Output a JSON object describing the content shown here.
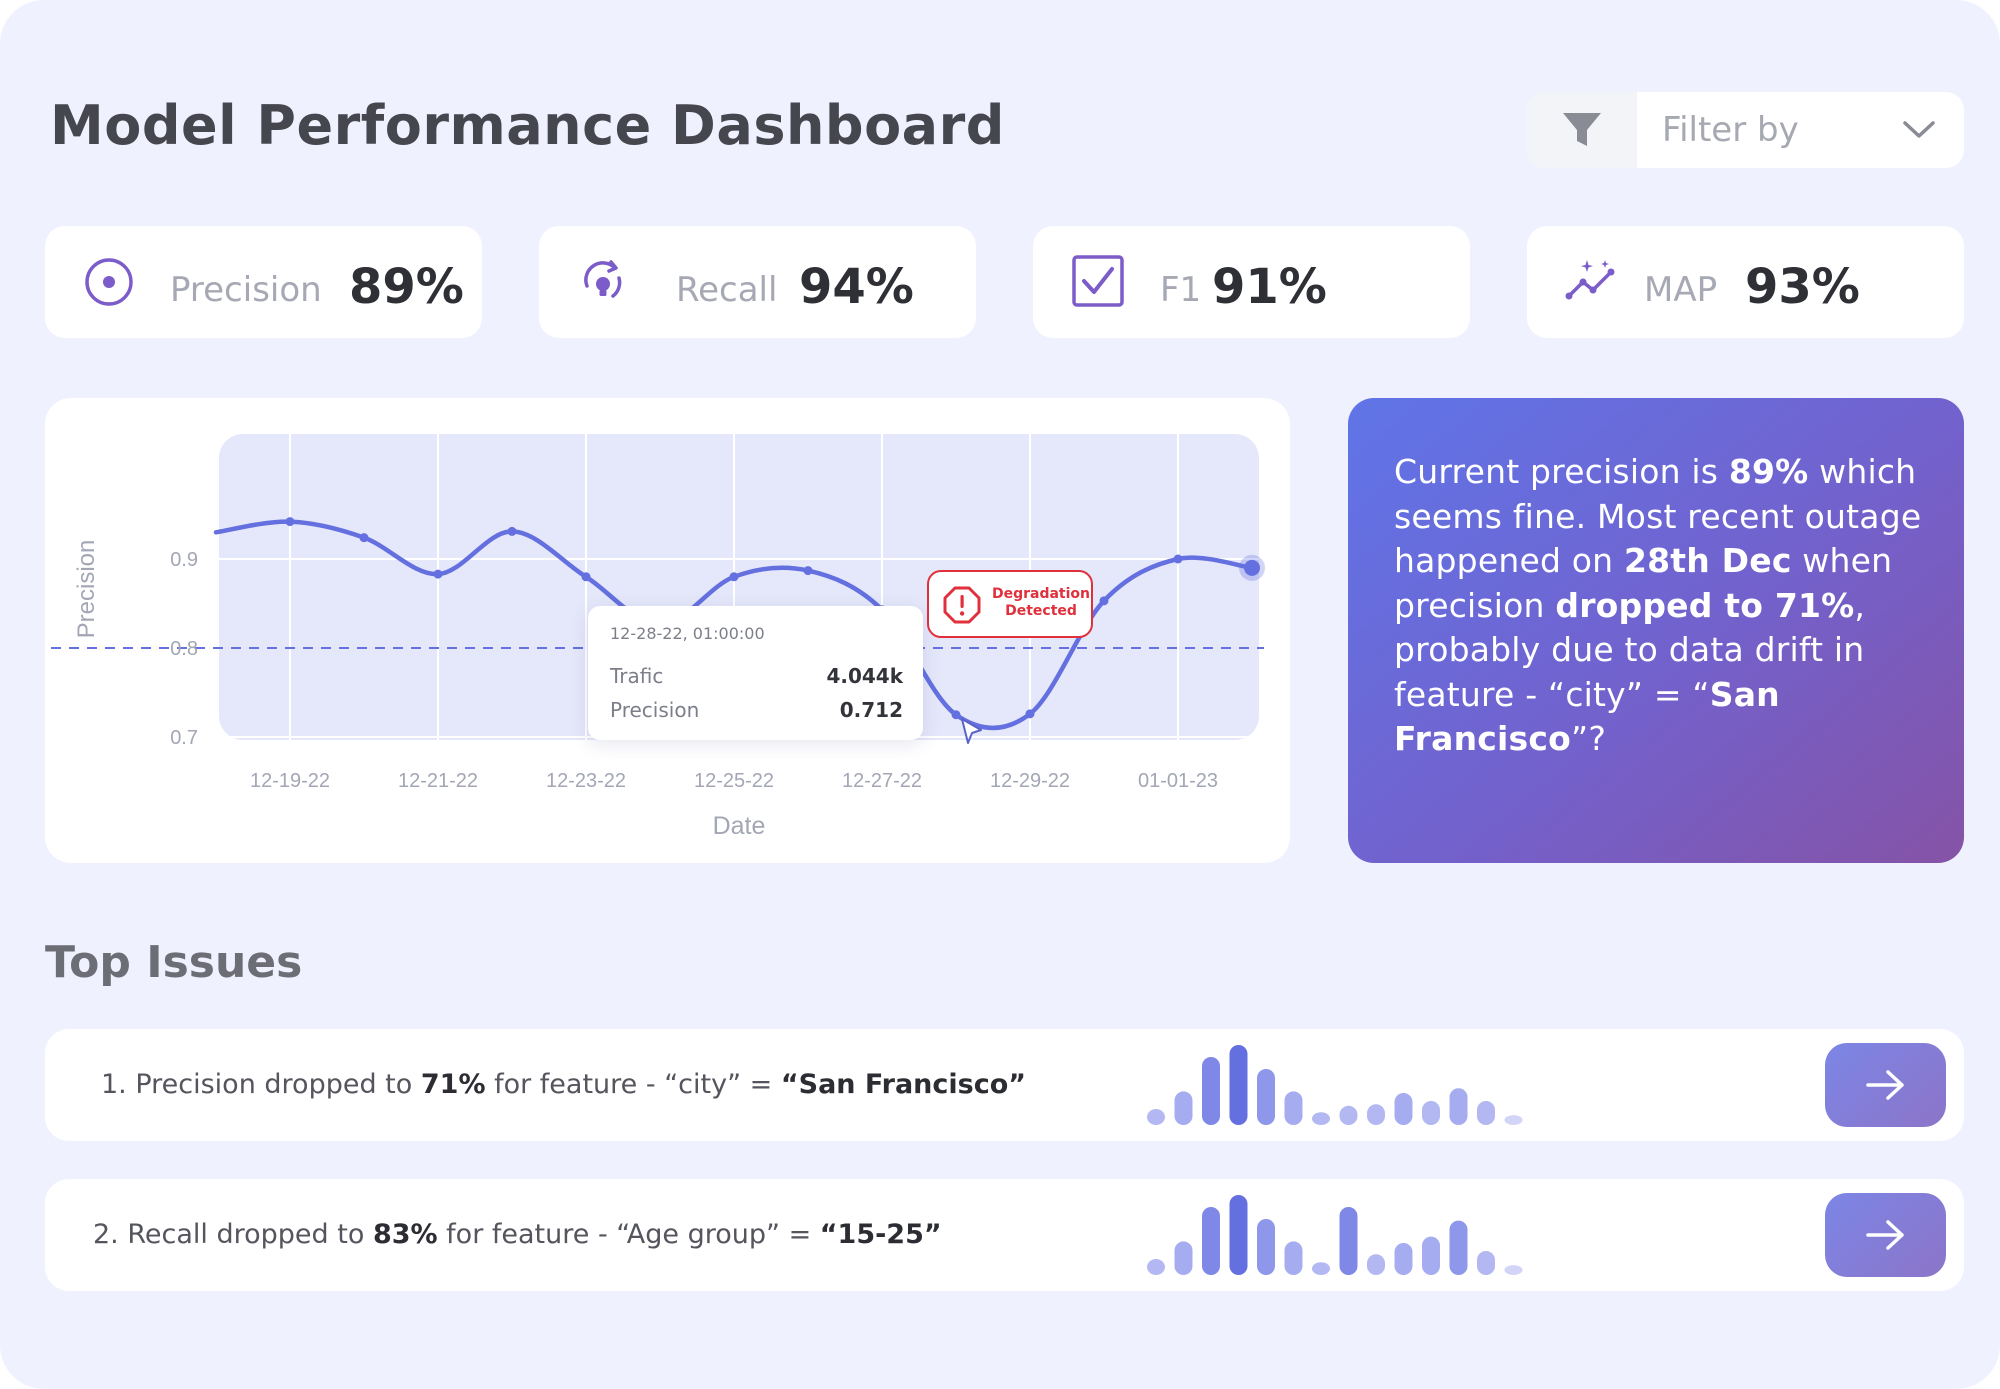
{
  "title": "Model Performance Dashboard",
  "filter": {
    "label": "Filter by"
  },
  "kpis": [
    {
      "label": "Precision",
      "value": "89%"
    },
    {
      "label": "Recall",
      "value": "94%"
    },
    {
      "label": "F1",
      "value": "91%"
    },
    {
      "label": "MAP",
      "value": "93%"
    }
  ],
  "colors": {
    "accent": "#6470df",
    "purple": "#7b5cc9",
    "alert": "#e0303b",
    "background": "#eff1fe"
  },
  "chart_data": {
    "type": "line",
    "xlabel": "Date",
    "ylabel": "Precision",
    "x_ticks": [
      "12-19-22",
      "12-21-22",
      "12-23-22",
      "12-25-22",
      "12-27-22",
      "12-29-22",
      "01-01-23"
    ],
    "y_ticks": [
      "0.9",
      "0.8",
      "0.7"
    ],
    "ylim": [
      0.68,
      1.0
    ],
    "threshold": 0.8,
    "grid": true,
    "series": [
      {
        "x": [
          "2022-12-18",
          "2022-12-19",
          "2022-12-20",
          "2022-12-21",
          "2022-12-22",
          "2022-12-23",
          "2022-12-24",
          "2022-12-25",
          "2022-12-26",
          "2022-12-27",
          "2022-12-28",
          "2022-12-29",
          "2022-12-30",
          "2022-12-31",
          "2023-01-01"
        ],
        "values": [
          0.93,
          0.942,
          0.924,
          0.883,
          0.931,
          0.88,
          0.826,
          0.88,
          0.887,
          0.843,
          0.725,
          0.726,
          0.853,
          0.9,
          0.89
        ]
      }
    ],
    "tooltip": {
      "date": "12-28-22, 01:00:00",
      "traffic_label": "Trafic",
      "traffic_value": "4.044k",
      "precision_label": "Precision",
      "precision_value": "0.712"
    },
    "alert": {
      "text": "Degradation Detected",
      "x": "2022-12-28"
    }
  },
  "insight": {
    "t1": "Current precision is ",
    "b1": "89%",
    "t2": " which seems fine. Most recent outage happened on ",
    "b2": "28th Dec",
    "t3": " when precision ",
    "b3": "dropped to 71%",
    "t4": ", probably due to data drift in feature - “city” = “",
    "b4": "San Francisco",
    "t5": "”?"
  },
  "issues_title": "Top Issues",
  "issues": [
    {
      "t1": "1. Precision dropped to ",
      "b1": "71%",
      "t2": " for feature - “city” = ",
      "b2": "“San Francisco”",
      "bars": [
        0.2,
        0.42,
        0.85,
        1.0,
        0.7,
        0.42,
        0.16,
        0.24,
        0.26,
        0.4,
        0.3,
        0.46,
        0.3,
        0.08
      ]
    },
    {
      "t1": "2. Recall dropped to ",
      "b1": "83%",
      "t2": " for feature - “Age group” = ",
      "b2": "“15-25”",
      "bars": [
        0.2,
        0.42,
        0.85,
        1.0,
        0.7,
        0.42,
        0.16,
        0.85,
        0.26,
        0.4,
        0.48,
        0.68,
        0.3,
        0.08
      ]
    }
  ]
}
